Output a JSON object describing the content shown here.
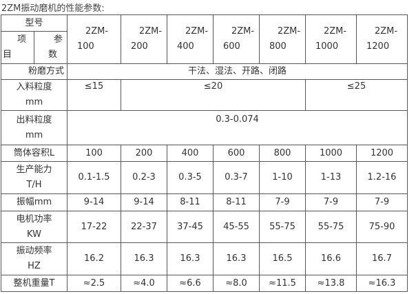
{
  "title": "2ZM振动磨机的性能参数:",
  "corner": {
    "top": "型号",
    "left_a": "项",
    "left_b": "目",
    "right_a": "参",
    "right_b": "数"
  },
  "models": [
    [
      "2ZM-",
      "100"
    ],
    [
      "2ZM-",
      "200"
    ],
    [
      "2ZM-",
      "400"
    ],
    [
      "2ZM-",
      "600"
    ],
    [
      "2ZM-",
      "800"
    ],
    [
      "2ZM-",
      "1000"
    ],
    [
      "2ZM-",
      "1200"
    ]
  ],
  "grinding": {
    "label": "粉磨方式",
    "value": "干法、湿法、开路、闭路"
  },
  "feed": {
    "label_a": "入料粒度",
    "label_b": "mm",
    "v1": "≤15",
    "v2": "≤20",
    "v3": "≤25"
  },
  "output": {
    "label_a": "出料粒度",
    "label_b": "mm",
    "value": "0.3-0.074"
  },
  "rows": [
    {
      "label_a": "筒体容积L",
      "label_b": "",
      "values": [
        "100",
        "200",
        "400",
        "600",
        "800",
        "1000",
        "1200"
      ]
    },
    {
      "label_a": "生产能力",
      "label_b": "T/H",
      "values": [
        "0.1-1.5",
        "0.2-3",
        "0.3-5",
        "0.3-7",
        "1-10",
        "1-13",
        "1.2-16"
      ]
    },
    {
      "label_a": "振幅mm",
      "label_b": "",
      "values": [
        "9-14",
        "9-14",
        "8-11",
        "8-11",
        "7-9",
        "7-9",
        "7-9"
      ]
    },
    {
      "label_a": "电机功率",
      "label_b": "KW",
      "values": [
        "17-22",
        "22-37",
        "37-45",
        "45-55",
        "55-75",
        "55-75",
        "75-90"
      ]
    },
    {
      "label_a": "振动频率",
      "label_b": "HZ",
      "values": [
        "16.2",
        "16.3",
        "16.3",
        "16.3",
        "16.5",
        "16.6",
        "16.7"
      ]
    },
    {
      "label_a": "整机重量T",
      "label_b": "",
      "values": [
        "≈2.5",
        "≈4.0",
        "≈6.6",
        "≈8.0",
        "≈11.5",
        "≈13.8",
        "≈16.3"
      ]
    }
  ]
}
